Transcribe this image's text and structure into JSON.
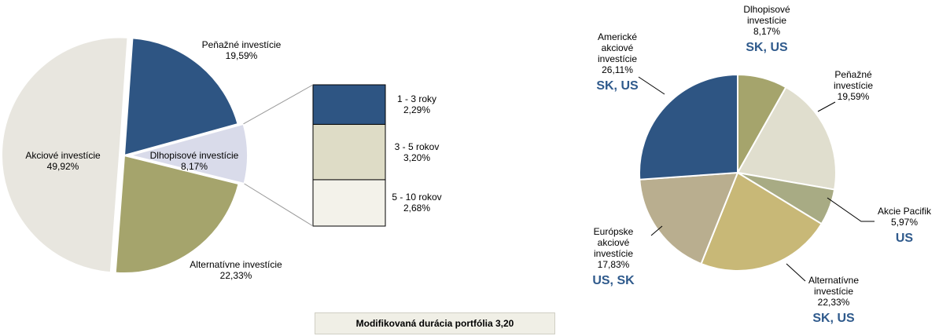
{
  "chart_data": [
    {
      "type": "pie",
      "categories": [
        "Peňažné investície",
        "Dlhopisové investície",
        "Alternatívne investície",
        "Akciové investície"
      ],
      "values": [
        19.59,
        8.17,
        22.33,
        49.92
      ],
      "value_labels": [
        "19,59%",
        "8,17%",
        "22,33%",
        "49,92%"
      ],
      "colors": [
        "#2e5583",
        "#d9dbea",
        "#a5a46c",
        "#e8e6df"
      ],
      "annotation": "Modifikovaná durácia portfólia 3,20"
    },
    {
      "type": "stacked-bar",
      "categories": [
        "1 - 3 roky",
        "3 - 5 rokov",
        "5 - 10 rokov"
      ],
      "values": [
        2.29,
        3.2,
        2.68
      ],
      "value_labels": [
        "2,29%",
        "3,20%",
        "2,68%"
      ],
      "colors": [
        "#2e5583",
        "#dedcc6",
        "#f3f2ea"
      ]
    },
    {
      "type": "pie",
      "categories": [
        "Dlhopisové investície",
        "Peňažné investície",
        "Akcie Pacifik",
        "Alternatívne investície",
        "Európske akciové investície",
        "Americké akciové investície"
      ],
      "values": [
        8.17,
        19.59,
        5.97,
        22.33,
        17.83,
        26.11
      ],
      "value_labels": [
        "8,17%",
        "19,59%",
        "5,97%",
        "22,33%",
        "17,83%",
        "26,11%"
      ],
      "tags": [
        "SK, US",
        null,
        "US",
        "SK, US",
        "US, SK",
        "SK, US"
      ],
      "tag_color": "#2f5a8c",
      "colors": [
        "#a5a46c",
        "#e0dece",
        "#a8ab84",
        "#c8b877",
        "#b9ae8f",
        "#2e5583"
      ]
    }
  ]
}
